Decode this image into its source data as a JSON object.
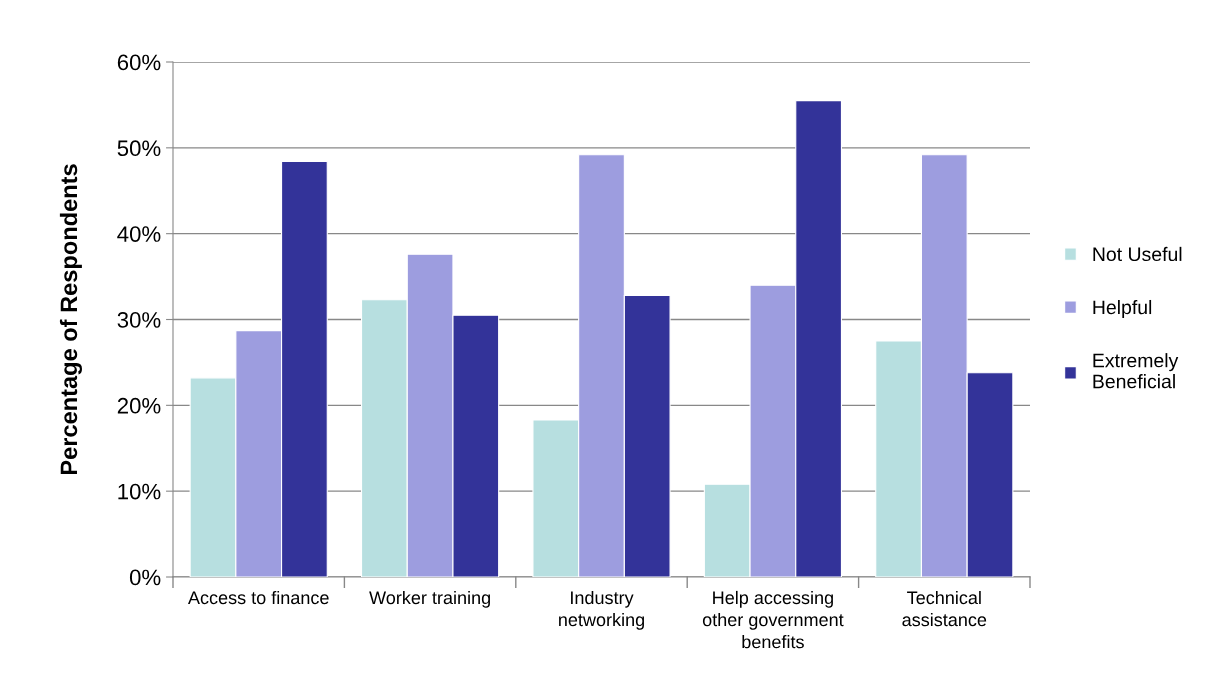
{
  "chart_data": {
    "type": "bar",
    "ylabel": "Percentage of Respondents",
    "categories": [
      "Access to finance",
      "Worker training",
      "Industry\nnetworking",
      "Help accessing\nother government\nbenefits",
      "Technical\nassistance"
    ],
    "series": [
      {
        "name": "Not Useful",
        "color": "#b7dfe0",
        "values": [
          23.2,
          32.3,
          18.3,
          10.8,
          27.5
        ]
      },
      {
        "name": "Helpful",
        "color": "#9d9ddf",
        "values": [
          28.7,
          37.6,
          49.2,
          34.0,
          49.2
        ]
      },
      {
        "name": "Extremely\nBeneficial",
        "color": "#333399",
        "values": [
          48.4,
          30.5,
          32.8,
          55.5,
          23.8
        ]
      }
    ],
    "ylim": [
      0,
      60
    ],
    "yticks": [
      {
        "value": 0,
        "label": "0%"
      },
      {
        "value": 10,
        "label": "10%"
      },
      {
        "value": 20,
        "label": "20%"
      },
      {
        "value": 30,
        "label": "30%"
      },
      {
        "value": 40,
        "label": "40%"
      },
      {
        "value": 50,
        "label": "50%"
      },
      {
        "value": 60,
        "label": "60%"
      }
    ],
    "grid": "y",
    "legend": "right"
  }
}
